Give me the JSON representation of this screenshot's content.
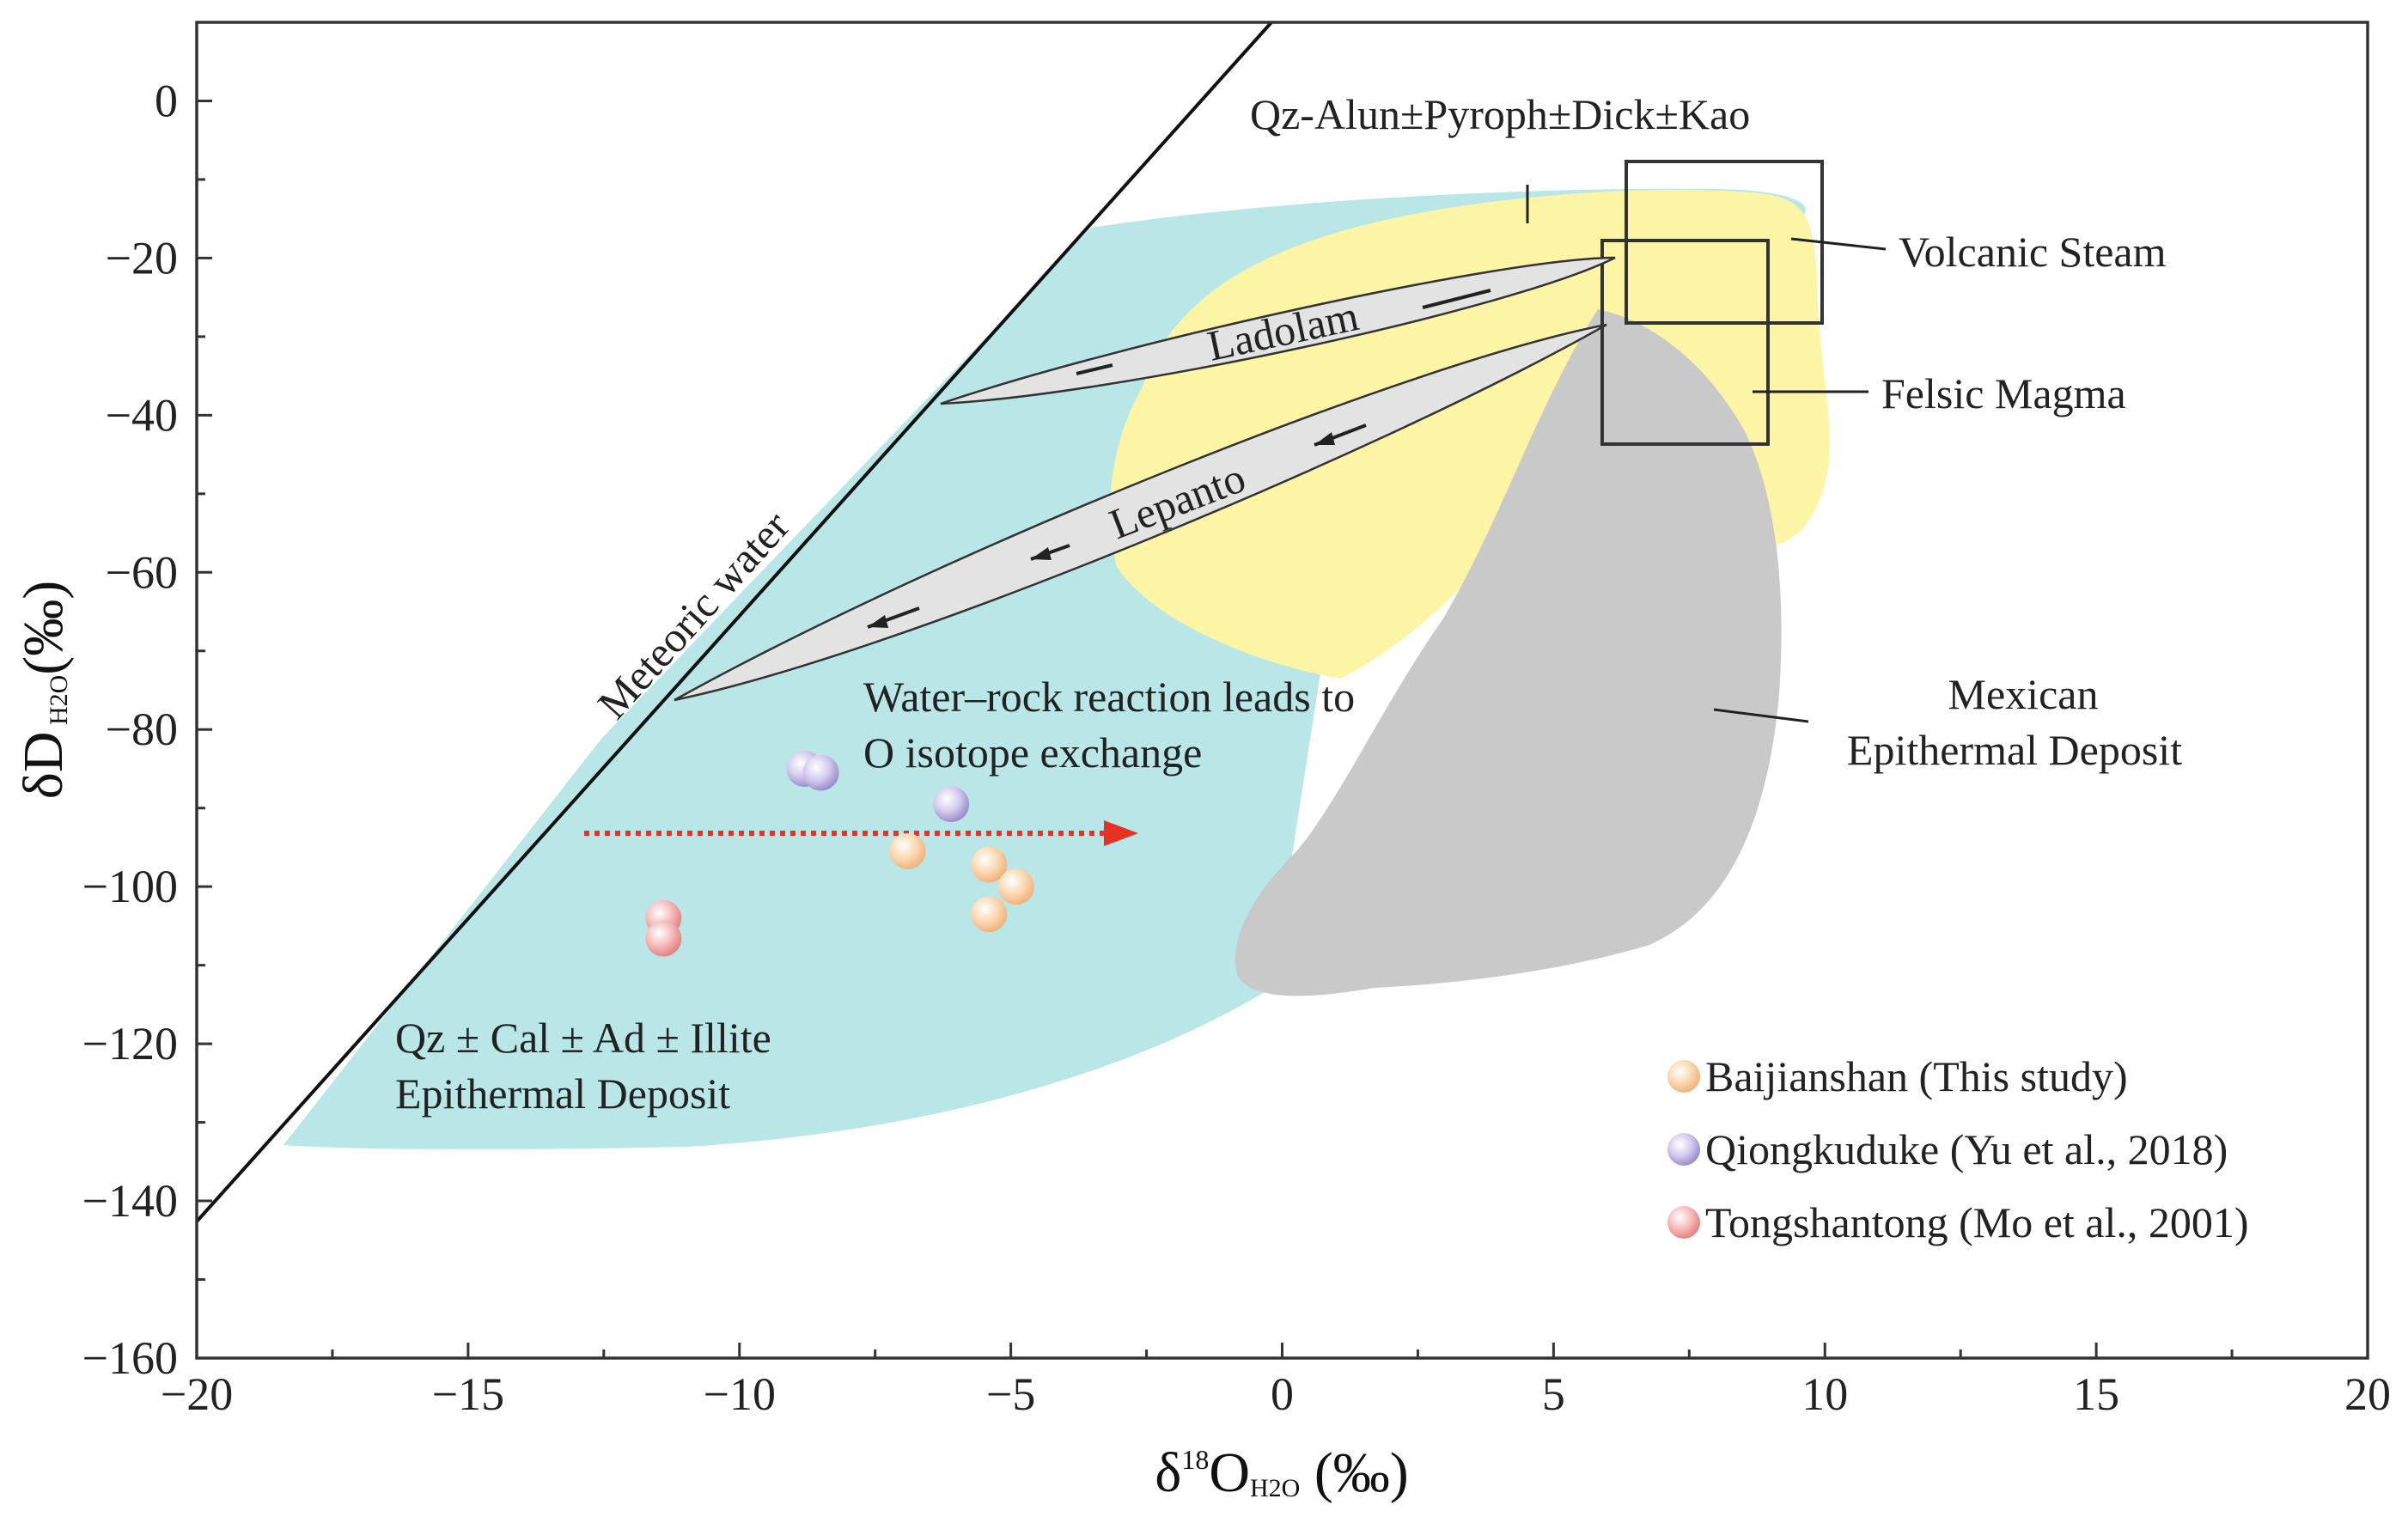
{
  "chart_data": {
    "type": "scatter",
    "xlabel": {
      "prefix": "δ",
      "sup": "18",
      "main": "O",
      "sub": "H2O",
      "unit": " (‰)"
    },
    "ylabel": {
      "prefix": "δD",
      "sub": " H2O",
      "unit": "(‰)"
    },
    "xlim": [
      -20,
      20
    ],
    "ylim": [
      -160,
      10
    ],
    "xticks": [
      -20,
      -15,
      -10,
      -5,
      0,
      5,
      10,
      15,
      20
    ],
    "xtick_labels": [
      "−20",
      "−15",
      "−10",
      "−5",
      "0",
      "5",
      "10",
      "15",
      "20"
    ],
    "yticks": [
      0,
      -20,
      -40,
      -60,
      -80,
      -100,
      -120,
      -140,
      -160
    ],
    "ytick_labels": [
      "0",
      "−20",
      "−40",
      "−60",
      "−80",
      "−100",
      "−120",
      "−140",
      "−160"
    ],
    "legend_position": "bottom-right",
    "series": [
      {
        "name": "Baijianshan (This study)",
        "color": "#f5c08c",
        "points": [
          [
            -6.9,
            -95.5
          ],
          [
            -5.4,
            -97.2
          ],
          [
            -4.9,
            -100.0
          ],
          [
            -5.4,
            -103.5
          ]
        ]
      },
      {
        "name": "Qiongkuduke (Yu et al., 2018)",
        "color": "#b3a5d8",
        "points": [
          [
            -8.8,
            -85.0
          ],
          [
            -8.5,
            -85.5
          ],
          [
            -6.1,
            -89.5
          ]
        ]
      },
      {
        "name": "Tongshantong (Mo et al., 2001)",
        "color": "#f0a0a0",
        "points": [
          [
            -11.4,
            -104.0
          ],
          [
            -11.4,
            -106.6
          ]
        ]
      }
    ],
    "regions": [
      {
        "name": "Qz ± Cal ± Ad ± Illite Epithermal Deposit",
        "color": "#b9e6e6",
        "lines": [
          "Qz ± Cal ± Ad ± Illite",
          "Epithermal Deposit"
        ]
      },
      {
        "name": "Qz-Alun±Pyroph±Dick±Kao",
        "color": "#fdf5a6"
      },
      {
        "name": "Mexican Epithermal Deposit",
        "color": "#c8c8c8",
        "lines": [
          "Mexican",
          "Epithermal Deposit"
        ]
      },
      {
        "name": "Volcanic Steam",
        "box_x": [
          6.3,
          9.8
        ],
        "box_y": [
          -28.5,
          -8.0
        ]
      },
      {
        "name": "Felsic Magma",
        "box_x": [
          5.9,
          8.8
        ],
        "box_y": [
          -44.0,
          -18.0
        ]
      }
    ],
    "trends": [
      {
        "name": "Ladolam"
      },
      {
        "name": "Lepanto"
      }
    ],
    "meteoric_water_line": {
      "label": "Meteoric water",
      "slope": 8,
      "intercept": 10
    },
    "annotations": [
      {
        "text": "Water–rock reaction leads to"
      },
      {
        "text": "O isotope exchange"
      }
    ]
  },
  "colors": {
    "frame": "#333333",
    "arrow_red": "#e53222"
  }
}
